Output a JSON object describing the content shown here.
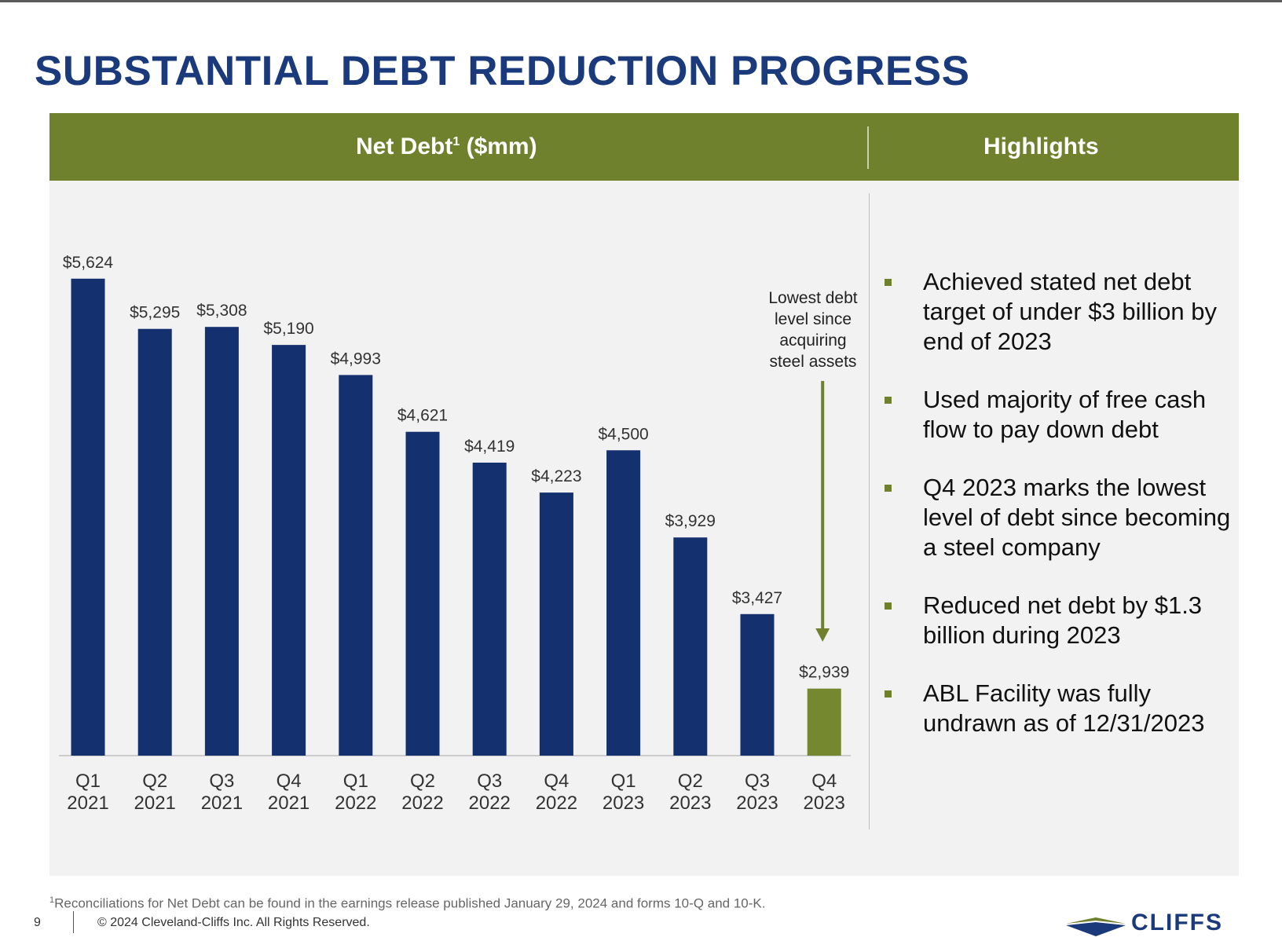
{
  "slide": {
    "title": "SUBSTANTIAL DEBT REDUCTION PROGRESS",
    "chart_header": "Net Debt",
    "chart_header_sup": "1",
    "chart_header_units": " ($mm)",
    "highlights_header": "Highlights"
  },
  "chart_data": {
    "type": "bar",
    "title": "Net Debt ($mm)",
    "categories": [
      "Q1 2021",
      "Q2 2021",
      "Q3 2021",
      "Q4 2021",
      "Q1 2022",
      "Q2 2022",
      "Q3 2022",
      "Q4 2022",
      "Q1 2023",
      "Q2 2023",
      "Q3 2023",
      "Q4 2023"
    ],
    "category_lines": [
      [
        "Q1",
        "2021"
      ],
      [
        "Q2",
        "2021"
      ],
      [
        "Q3",
        "2021"
      ],
      [
        "Q4",
        "2021"
      ],
      [
        "Q1",
        "2022"
      ],
      [
        "Q2",
        "2022"
      ],
      [
        "Q3",
        "2022"
      ],
      [
        "Q4",
        "2022"
      ],
      [
        "Q1",
        "2023"
      ],
      [
        "Q2",
        "2023"
      ],
      [
        "Q3",
        "2023"
      ],
      [
        "Q4",
        "2023"
      ]
    ],
    "values": [
      5624,
      5295,
      5308,
      5190,
      4993,
      4621,
      4419,
      4223,
      4500,
      3929,
      3427,
      2939
    ],
    "labels": [
      "$5,624",
      "$5,295",
      "$5,308",
      "$5,190",
      "$4,993",
      "$4,621",
      "$4,419",
      "$4,223",
      "$4,500",
      "$3,929",
      "$3,427",
      "$2,939"
    ],
    "ylim": [
      2500,
      5700
    ],
    "xlabel": "",
    "ylabel": "",
    "grid": false,
    "bar_color": "#14306e",
    "highlight_index": 11,
    "highlight_color": "#75872f",
    "annotation": {
      "text_lines": [
        "Lowest debt",
        "level since",
        "acquiring",
        "steel assets"
      ],
      "arrow_color": "#6f812d",
      "points_to": "Q4 2023"
    }
  },
  "highlights": [
    "Achieved stated net debt target of under $3 billion by end of 2023",
    "Used majority of free cash flow to pay down debt",
    "Q4 2023 marks the lowest level of debt since becoming a steel company",
    "Reduced net debt by $1.3 billion during 2023",
    "ABL Facility was fully undrawn as of 12/31/2023"
  ],
  "footer": {
    "footnote_sup": "1",
    "footnote": "Reconciliations for Net Debt can be found in the earnings release published January 29, 2024 and forms 10-Q and 10-K.",
    "page_number": "9",
    "copyright": "© 2024 Cleveland-Cliffs Inc. All Rights Reserved.",
    "logo_text": "CLIFFS"
  },
  "colors": {
    "title": "#1a3a7c",
    "band": "#6f812d",
    "panel": "#f2f2f2"
  }
}
